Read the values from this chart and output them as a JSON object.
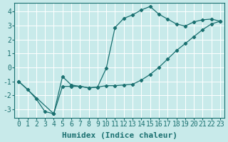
{
  "xlabel": "Humidex (Indice chaleur)",
  "background_color": "#c8eaea",
  "grid_color": "#ffffff",
  "line_color": "#1a7070",
  "xlim": [
    -0.5,
    23.5
  ],
  "ylim": [
    -3.6,
    4.6
  ],
  "xticks": [
    0,
    1,
    2,
    3,
    4,
    5,
    6,
    7,
    8,
    9,
    10,
    11,
    12,
    13,
    14,
    15,
    16,
    17,
    18,
    19,
    20,
    21,
    22,
    23
  ],
  "yticks": [
    -3,
    -2,
    -1,
    0,
    1,
    2,
    3,
    4
  ],
  "line1_x": [
    0,
    1,
    2,
    3,
    4,
    5,
    6,
    7,
    8,
    9,
    10,
    11,
    12,
    13,
    14,
    15,
    16,
    17,
    18,
    19,
    20,
    21,
    22,
    23
  ],
  "line1_y": [
    -1.0,
    -1.55,
    -2.25,
    -3.15,
    -3.3,
    -0.65,
    -1.25,
    -1.35,
    -1.45,
    -1.4,
    -0.05,
    2.85,
    3.5,
    3.75,
    4.1,
    4.35,
    3.8,
    3.45,
    3.1,
    2.95,
    3.25,
    3.4,
    3.45,
    3.3
  ],
  "line2_x": [
    0,
    4,
    5,
    6,
    7,
    8,
    9,
    10,
    11,
    12,
    13,
    14,
    15,
    16,
    17,
    18,
    19,
    20,
    21,
    22,
    23
  ],
  "line2_y": [
    -1.0,
    -3.3,
    -1.35,
    -1.35,
    -1.35,
    -1.45,
    -1.4,
    -1.3,
    -1.3,
    -1.25,
    -1.2,
    -0.9,
    -0.5,
    0.0,
    0.6,
    1.2,
    1.7,
    2.2,
    2.7,
    3.1,
    3.3
  ],
  "font_family": "monospace",
  "xlabel_fontsize": 8,
  "tick_fontsize": 7
}
